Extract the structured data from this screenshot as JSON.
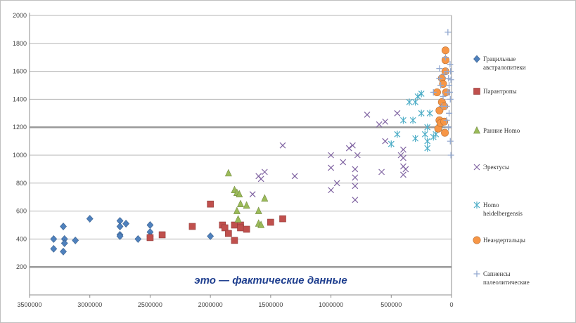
{
  "chart_data": {
    "type": "scatter",
    "title": "",
    "xlabel": "",
    "ylabel": "",
    "x_reversed": true,
    "xlim": [
      3500000,
      0
    ],
    "ylim": [
      0,
      2000
    ],
    "x_ticks": [
      "3500000",
      "3000000",
      "2500000",
      "2000000",
      "1500000",
      "1000000",
      "500000",
      "0"
    ],
    "y_ticks": [
      "200",
      "400",
      "600",
      "800",
      "1000",
      "1200",
      "1400",
      "1600",
      "1800",
      "2000"
    ],
    "grid": "horizontal",
    "legend_position": "right",
    "annotation": "это — фактические данные",
    "series": [
      {
        "name": "Грацильные австралопитеки",
        "marker": "diamond",
        "color": "#4f81bd",
        "points": [
          [
            3300000,
            400
          ],
          [
            3300000,
            330
          ],
          [
            3220000,
            490
          ],
          [
            3220000,
            310
          ],
          [
            3210000,
            400
          ],
          [
            3210000,
            370
          ],
          [
            3120000,
            390
          ],
          [
            3000000,
            545
          ],
          [
            2750000,
            530
          ],
          [
            2750000,
            490
          ],
          [
            2750000,
            430
          ],
          [
            2750000,
            420
          ],
          [
            2700000,
            510
          ],
          [
            2600000,
            400
          ],
          [
            2500000,
            500
          ],
          [
            2500000,
            450
          ],
          [
            2500000,
            420
          ],
          [
            2000000,
            420
          ]
        ]
      },
      {
        "name": "Парантропы",
        "marker": "square",
        "color": "#c0504d",
        "points": [
          [
            2500000,
            410
          ],
          [
            2400000,
            430
          ],
          [
            2150000,
            490
          ],
          [
            2000000,
            650
          ],
          [
            1900000,
            500
          ],
          [
            1880000,
            480
          ],
          [
            1850000,
            440
          ],
          [
            1800000,
            390
          ],
          [
            1800000,
            500
          ],
          [
            1750000,
            500
          ],
          [
            1750000,
            480
          ],
          [
            1700000,
            470
          ],
          [
            1500000,
            520
          ],
          [
            1400000,
            545
          ]
        ]
      },
      {
        "name": "Ранние Homo",
        "marker": "triangle",
        "color": "#9bbb59",
        "points": [
          [
            1850000,
            870
          ],
          [
            1800000,
            750
          ],
          [
            1780000,
            730
          ],
          [
            1780000,
            600
          ],
          [
            1770000,
            540
          ],
          [
            1760000,
            720
          ],
          [
            1750000,
            650
          ],
          [
            1700000,
            640
          ],
          [
            1600000,
            600
          ],
          [
            1600000,
            510
          ],
          [
            1580000,
            500
          ],
          [
            1550000,
            690
          ]
        ]
      },
      {
        "name": "Эректусы",
        "marker": "x",
        "color": "#8064a2",
        "points": [
          [
            1650000,
            720
          ],
          [
            1600000,
            850
          ],
          [
            1580000,
            830
          ],
          [
            1550000,
            880
          ],
          [
            1400000,
            1070
          ],
          [
            1300000,
            850
          ],
          [
            1000000,
            1000
          ],
          [
            1000000,
            910
          ],
          [
            1000000,
            750
          ],
          [
            950000,
            800
          ],
          [
            900000,
            950
          ],
          [
            850000,
            1050
          ],
          [
            820000,
            1070
          ],
          [
            800000,
            680
          ],
          [
            800000,
            780
          ],
          [
            800000,
            840
          ],
          [
            800000,
            900
          ],
          [
            780000,
            1000
          ],
          [
            700000,
            1290
          ],
          [
            600000,
            1220
          ],
          [
            580000,
            880
          ],
          [
            550000,
            1240
          ],
          [
            550000,
            1100
          ],
          [
            450000,
            1300
          ],
          [
            420000,
            1000
          ],
          [
            400000,
            1040
          ],
          [
            400000,
            980
          ],
          [
            400000,
            920
          ],
          [
            400000,
            860
          ],
          [
            380000,
            900
          ]
        ]
      },
      {
        "name": "Homo heidelbergensis",
        "marker": "star",
        "color": "#4bacc6",
        "points": [
          [
            500000,
            1080
          ],
          [
            450000,
            1150
          ],
          [
            400000,
            1250
          ],
          [
            350000,
            1380
          ],
          [
            320000,
            1250
          ],
          [
            300000,
            1380
          ],
          [
            300000,
            1120
          ],
          [
            280000,
            1420
          ],
          [
            250000,
            1440
          ],
          [
            250000,
            1300
          ],
          [
            220000,
            1150
          ],
          [
            200000,
            1100
          ],
          [
            200000,
            1050
          ],
          [
            200000,
            1200
          ],
          [
            180000,
            1300
          ],
          [
            150000,
            1130
          ],
          [
            130000,
            1150
          ],
          [
            100000,
            1200
          ]
        ]
      },
      {
        "name": "Неандертальцы",
        "marker": "circle",
        "color": "#f79646",
        "points": [
          [
            120000,
            1450
          ],
          [
            110000,
            1190
          ],
          [
            100000,
            1250
          ],
          [
            100000,
            1320
          ],
          [
            90000,
            1230
          ],
          [
            80000,
            1550
          ],
          [
            80000,
            1380
          ],
          [
            70000,
            1510
          ],
          [
            60000,
            1350
          ],
          [
            60000,
            1240
          ],
          [
            55000,
            1160
          ],
          [
            50000,
            1750
          ],
          [
            50000,
            1680
          ],
          [
            50000,
            1600
          ],
          [
            45000,
            1450
          ]
        ]
      },
      {
        "name": "Сапиенсы палеолитические",
        "marker": "plus",
        "color": "#93a9d0",
        "points": [
          [
            150000,
            1450
          ],
          [
            100000,
            1550
          ],
          [
            100000,
            1620
          ],
          [
            90000,
            1500
          ],
          [
            80000,
            1350
          ],
          [
            70000,
            1420
          ],
          [
            60000,
            1580
          ],
          [
            50000,
            1700
          ],
          [
            40000,
            1250
          ],
          [
            40000,
            1350
          ],
          [
            35000,
            1600
          ],
          [
            30000,
            1880
          ],
          [
            30000,
            1450
          ],
          [
            25000,
            1200
          ],
          [
            25000,
            1550
          ],
          [
            20000,
            1500
          ],
          [
            20000,
            1300
          ],
          [
            15000,
            1450
          ],
          [
            12000,
            1650
          ],
          [
            10000,
            1400
          ],
          [
            10000,
            1100
          ],
          [
            8000,
            1600
          ],
          [
            5000,
            1000
          ],
          [
            5000,
            1540
          ]
        ]
      }
    ]
  }
}
